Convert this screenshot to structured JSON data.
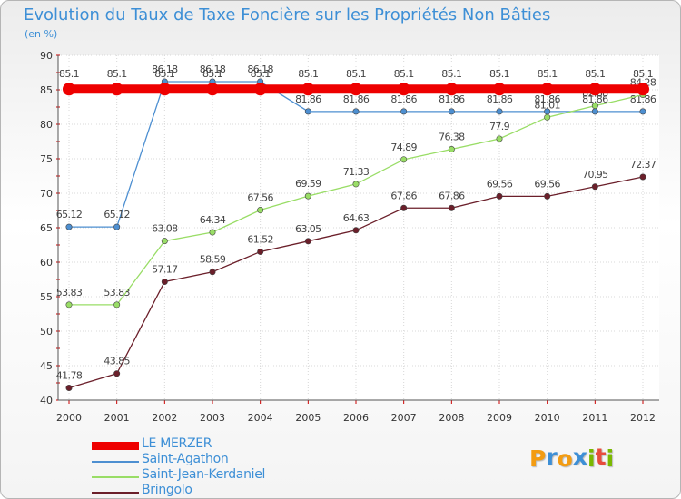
{
  "title": "Evolution du Taux de Taxe Foncière sur les Propriétés Non Bâties",
  "subtitle": "(en %)",
  "logo": {
    "text": [
      "P",
      "r",
      "o",
      "x",
      "i",
      "t",
      "i"
    ],
    "colors": [
      "#f39c12",
      "#3d8fd6",
      "#f39c12",
      "#3d8fd6",
      "#7ab800",
      "#e74c3c",
      "#7ab800"
    ]
  },
  "chart_data": {
    "type": "line",
    "title": "Evolution du Taux de Taxe Foncière sur les Propriétés Non Bâties",
    "ylabel": "(en %)",
    "xlabel": "",
    "ylim": [
      40,
      90
    ],
    "yticks": [
      40,
      45,
      50,
      55,
      60,
      65,
      70,
      75,
      80,
      85,
      90
    ],
    "grid": true,
    "legend_position": "bottom-left",
    "categories": [
      "2000",
      "2001",
      "2002",
      "2003",
      "2004",
      "2005",
      "2006",
      "2007",
      "2008",
      "2009",
      "2010",
      "2011",
      "2012"
    ],
    "series": [
      {
        "name": "LE MERZER",
        "color": "#ee0000",
        "values": [
          85.1,
          85.1,
          85.1,
          85.1,
          85.1,
          85.1,
          85.1,
          85.1,
          85.1,
          85.1,
          85.1,
          85.1,
          85.1
        ],
        "labels": [
          "85.1",
          "85.1",
          "85.1",
          "85.1",
          "85.1",
          "85.1",
          "85.1",
          "85.1",
          "85.1",
          "85.1",
          "85.1",
          "85.1",
          "85.1"
        ]
      },
      {
        "name": "Saint-Agathon",
        "color": "#4d8fd1",
        "values": [
          65.12,
          65.12,
          86.18,
          86.18,
          86.18,
          81.86,
          81.86,
          81.86,
          81.86,
          81.86,
          81.86,
          81.86,
          81.86
        ],
        "labels": [
          "65.12",
          "65.12",
          "86.18",
          "86.18",
          "86.18",
          "81.86",
          "81.86",
          "81.86",
          "81.86",
          "81.86",
          "81.86",
          "81.86",
          "81.86"
        ]
      },
      {
        "name": "Saint-Jean-Kerdaniel",
        "color": "#99dd66",
        "values": [
          53.83,
          53.83,
          63.08,
          64.34,
          67.56,
          69.59,
          71.33,
          74.89,
          76.38,
          77.9,
          81.01,
          82.68,
          84.28
        ],
        "labels": [
          "53.83",
          "53.83",
          "63.08",
          "64.34",
          "67.56",
          "69.59",
          "71.33",
          "74.89",
          "76.38",
          "77.9",
          "81.01",
          "82.68",
          "84.28"
        ]
      },
      {
        "name": "Bringolo",
        "color": "#6b1f2a",
        "values": [
          41.78,
          43.85,
          57.17,
          58.59,
          61.52,
          63.05,
          64.63,
          67.86,
          67.86,
          69.56,
          69.56,
          70.95,
          72.37
        ],
        "labels": [
          "41.78",
          "43.85",
          "57.17",
          "58.59",
          "61.52",
          "63.05",
          "64.63",
          "67.86",
          "67.86",
          "69.56",
          "69.56",
          "70.95",
          "72.37"
        ]
      }
    ]
  }
}
